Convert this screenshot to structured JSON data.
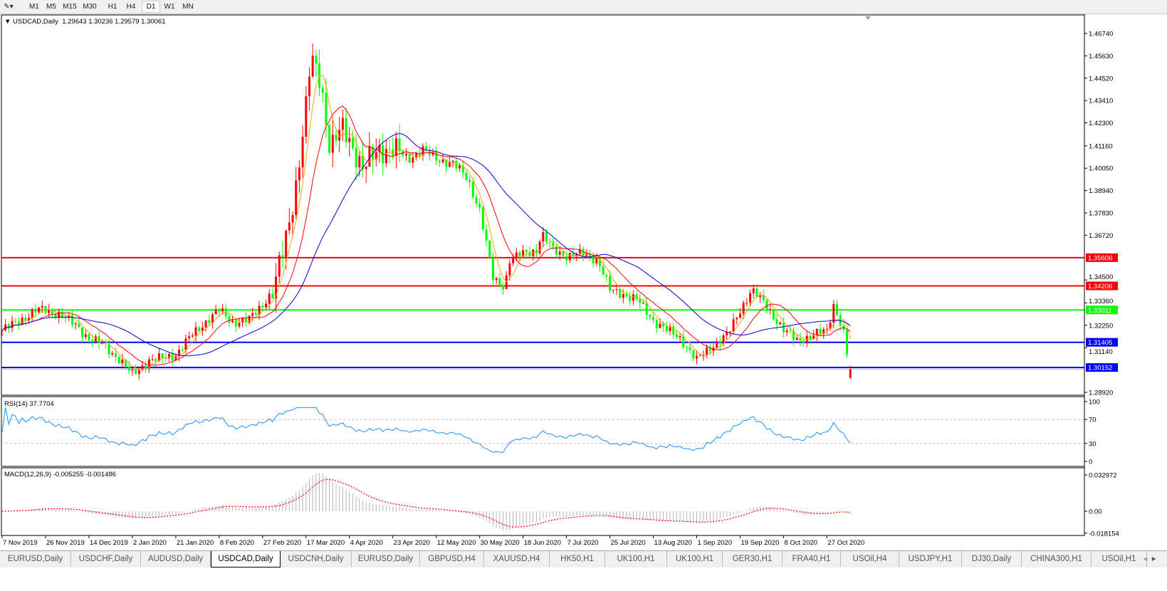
{
  "toolbar": {
    "timeframes": [
      "M1",
      "M5",
      "M15",
      "M30",
      "H1",
      "H4",
      "D1",
      "W1",
      "MN"
    ],
    "active": "D1"
  },
  "header": {
    "symbol": "USDCAD,Daily",
    "open": "1.29643",
    "high": "1.30236",
    "low": "1.29579",
    "close": "1.30061"
  },
  "rsi": {
    "label": "RSI(14) 37.7704",
    "levels": [
      "100",
      "70",
      "30",
      "0"
    ]
  },
  "macd": {
    "label": "MACD(12,26,9) -0.005255 -0.001486",
    "levels": [
      "0.032972",
      "0.00",
      "-0.018154"
    ]
  },
  "tabs": [
    "EURUSD,Daily",
    "USDCHF,Daily",
    "AUDUSD,Daily",
    "USDCAD,Daily",
    "USDCNH,Daily",
    "EURUSD,Daily",
    "GBPUSD,H4",
    "XAUUSD,H4",
    "HK50,H1",
    "UK100,H1",
    "UK100,H1",
    "GER30,H1",
    "FRA40,H1",
    "USOil,H4",
    "USDJPY,H1",
    "DJ30,Daily",
    "CHINA300,H1",
    "USOil,H1"
  ],
  "active_tab": 3,
  "colors": {
    "bull": "#ff0000",
    "bear": "#00ff00",
    "ma_fast": "#ffa500",
    "ma_mid": "#ff0000",
    "ma_slow": "#0000cd",
    "rsi": "#1e90ff",
    "macd_hist": "#b4b4b4",
    "macd_signal": "#ff0000"
  },
  "chart_data": {
    "type": "candlestick",
    "symbol": "USDCAD",
    "timeframe": "Daily",
    "ylim": [
      1.284,
      1.472
    ],
    "y_ticks": [
      "1.46740",
      "1.45630",
      "1.44520",
      "1.43410",
      "1.42300",
      "1.41160",
      "1.40050",
      "1.38940",
      "1.37830",
      "1.36720",
      "1.34500",
      "1.33360",
      "1.32250",
      "1.31140",
      "1.28920"
    ],
    "x_ticks": [
      "7 Nov 2019",
      "26 Nov 2019",
      "14 Dec 2019",
      "2 Jan 2020",
      "21 Jan 2020",
      "8 Feb 2020",
      "27 Feb 2020",
      "17 Mar 2020",
      "4 Apr 2020",
      "23 Apr 2020",
      "12 May 2020",
      "30 May 2020",
      "18 Jun 2020",
      "7 Jul 2020",
      "25 Jul 2020",
      "13 Aug 2020",
      "1 Sep 2020",
      "19 Sep 2020",
      "8 Oct 2020",
      "27 Oct 2020"
    ],
    "approx_closes": [
      [
        "2019-11-07",
        1.32
      ],
      [
        "2019-11-15",
        1.325
      ],
      [
        "2019-11-22",
        1.33
      ],
      [
        "2019-11-26",
        1.33
      ],
      [
        "2019-12-02",
        1.328
      ],
      [
        "2019-12-09",
        1.322
      ],
      [
        "2019-12-14",
        1.316
      ],
      [
        "2019-12-20",
        1.313
      ],
      [
        "2019-12-27",
        1.306
      ],
      [
        "2020-01-02",
        1.298
      ],
      [
        "2020-01-09",
        1.305
      ],
      [
        "2020-01-15",
        1.306
      ],
      [
        "2020-01-21",
        1.308
      ],
      [
        "2020-01-28",
        1.318
      ],
      [
        "2020-02-03",
        1.325
      ],
      [
        "2020-02-08",
        1.33
      ],
      [
        "2020-02-14",
        1.324
      ],
      [
        "2020-02-21",
        1.325
      ],
      [
        "2020-02-27",
        1.333
      ],
      [
        "2020-03-03",
        1.34
      ],
      [
        "2020-03-09",
        1.37
      ],
      [
        "2020-03-13",
        1.395
      ],
      [
        "2020-03-17",
        1.43
      ],
      [
        "2020-03-19",
        1.455
      ],
      [
        "2020-03-23",
        1.445
      ],
      [
        "2020-03-27",
        1.41
      ],
      [
        "2020-04-01",
        1.42
      ],
      [
        "2020-04-04",
        1.415
      ],
      [
        "2020-04-10",
        1.4
      ],
      [
        "2020-04-17",
        1.41
      ],
      [
        "2020-04-23",
        1.41
      ],
      [
        "2020-04-30",
        1.405
      ],
      [
        "2020-05-06",
        1.41
      ],
      [
        "2020-05-12",
        1.405
      ],
      [
        "2020-05-19",
        1.403
      ],
      [
        "2020-05-25",
        1.395
      ],
      [
        "2020-05-30",
        1.38
      ],
      [
        "2020-06-05",
        1.345
      ],
      [
        "2020-06-10",
        1.342
      ],
      [
        "2020-06-12",
        1.355
      ],
      [
        "2020-06-18",
        1.358
      ],
      [
        "2020-06-24",
        1.36
      ],
      [
        "2020-06-26",
        1.368
      ],
      [
        "2020-07-01",
        1.36
      ],
      [
        "2020-07-07",
        1.357
      ],
      [
        "2020-07-14",
        1.358
      ],
      [
        "2020-07-20",
        1.355
      ],
      [
        "2020-07-25",
        1.34
      ],
      [
        "2020-07-31",
        1.338
      ],
      [
        "2020-08-06",
        1.335
      ],
      [
        "2020-08-13",
        1.325
      ],
      [
        "2020-08-19",
        1.32
      ],
      [
        "2020-08-25",
        1.316
      ],
      [
        "2020-09-01",
        1.305
      ],
      [
        "2020-09-07",
        1.312
      ],
      [
        "2020-09-14",
        1.318
      ],
      [
        "2020-09-19",
        1.33
      ],
      [
        "2020-09-24",
        1.34
      ],
      [
        "2020-09-30",
        1.333
      ],
      [
        "2020-10-08",
        1.32
      ],
      [
        "2020-10-14",
        1.315
      ],
      [
        "2020-10-20",
        1.317
      ],
      [
        "2020-10-27",
        1.32
      ],
      [
        "2020-10-30",
        1.333
      ],
      [
        "2020-11-03",
        1.32
      ],
      [
        "2020-11-06",
        1.3
      ]
    ],
    "last_bar": {
      "open": 1.29643,
      "high": 1.30236,
      "low": 1.29579,
      "close": 1.30061
    },
    "horizontal_lines": [
      {
        "price": "1.35606",
        "color": "#ff0000"
      },
      {
        "price": "1.34206",
        "color": "#ff0000"
      },
      {
        "price": "1.33011",
        "color": "#00ff00"
      },
      {
        "price": "1.31405",
        "color": "#0000ff"
      },
      {
        "price": "1.30152",
        "color": "#0000ff"
      }
    ],
    "current_price": "1.30061",
    "rsi_ylim": [
      0,
      100
    ],
    "macd_ylim": [
      -0.018154,
      0.032972
    ],
    "grid": false
  }
}
